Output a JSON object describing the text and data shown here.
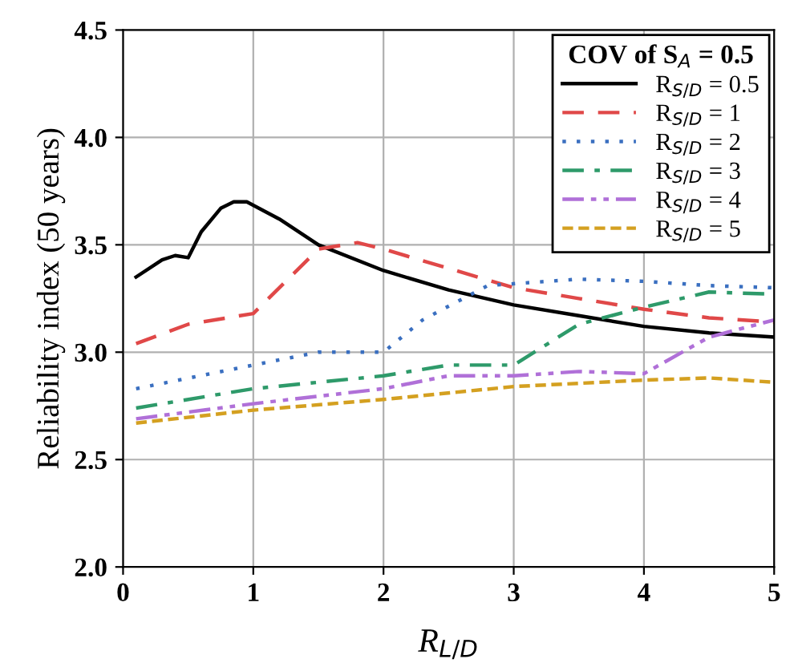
{
  "chart_data": {
    "type": "line",
    "xlabel": "R$_{L/D}$",
    "ylabel": "Reliability index (50 years)",
    "legend_title": "COV of S$_{A}$ = 0.5",
    "legend": "top right",
    "grid": true,
    "xlim": [
      0,
      5
    ],
    "xticks": [
      0,
      1,
      2,
      3,
      4,
      5
    ],
    "ylim": [
      2.0,
      4.5
    ],
    "yticks": [
      {
        "value": 2.0,
        "label": "2.0"
      },
      {
        "value": 2.5,
        "label": "2.5"
      },
      {
        "value": 3.0,
        "label": "3.0"
      },
      {
        "value": 3.5,
        "label": "3.5"
      },
      {
        "value": 4.0,
        "label": "4.0"
      },
      {
        "value": 4.5,
        "label": "4.5"
      }
    ],
    "series": [
      {
        "name": "R$_{S/D}$ = 0.5",
        "color": "#000000",
        "line_style": "solid",
        "x": [
          0.1,
          0.3,
          0.4,
          0.5,
          0.6,
          0.75,
          0.85,
          0.95,
          1.2,
          1.5,
          2,
          2.5,
          3,
          3.5,
          4,
          4.5,
          5
        ],
        "values": [
          3.35,
          3.43,
          3.45,
          3.44,
          3.56,
          3.67,
          3.7,
          3.7,
          3.62,
          3.5,
          3.38,
          3.29,
          3.22,
          3.17,
          3.12,
          3.09,
          3.07
        ]
      },
      {
        "name": "R$_{S/D}$ = 1",
        "color": "#e04848",
        "line_style": "dashed",
        "x": [
          0.1,
          0.5,
          1,
          1.5,
          1.8,
          2,
          2.5,
          3,
          3.5,
          4,
          4.5,
          5
        ],
        "values": [
          3.04,
          3.13,
          3.18,
          3.48,
          3.51,
          3.48,
          3.39,
          3.3,
          3.25,
          3.2,
          3.16,
          3.14
        ]
      },
      {
        "name": "R$_{S/D}$ = 2",
        "color": "#3a6fc0",
        "line_style": "dotted",
        "x": [
          0.1,
          1,
          1.5,
          2,
          2.3,
          2.8,
          3.5,
          4,
          4.5,
          5
        ],
        "values": [
          2.83,
          2.94,
          3.0,
          3.0,
          3.15,
          3.31,
          3.34,
          3.33,
          3.31,
          3.3
        ]
      },
      {
        "name": "R$_{S/D}$ = 3",
        "color": "#2e9a6a",
        "line_style": "dashdot",
        "x": [
          0.1,
          1,
          2,
          2.5,
          3,
          3.5,
          4,
          4.5,
          5
        ],
        "values": [
          2.74,
          2.83,
          2.89,
          2.94,
          2.94,
          3.13,
          3.21,
          3.28,
          3.27
        ]
      },
      {
        "name": "R$_{S/D}$ = 4",
        "color": "#b070d8",
        "line_style": "dashdotdot",
        "x": [
          0.1,
          1,
          2,
          2.5,
          3,
          3.5,
          4,
          4.5,
          5
        ],
        "values": [
          2.69,
          2.76,
          2.83,
          2.89,
          2.89,
          2.91,
          2.9,
          3.07,
          3.15
        ]
      },
      {
        "name": "R$_{S/D}$ = 5",
        "color": "#d4a020",
        "line_style": "shortdash",
        "x": [
          0.1,
          1,
          2,
          3,
          4,
          4.5,
          5
        ],
        "values": [
          2.67,
          2.73,
          2.78,
          2.84,
          2.87,
          2.88,
          2.86
        ]
      }
    ]
  }
}
